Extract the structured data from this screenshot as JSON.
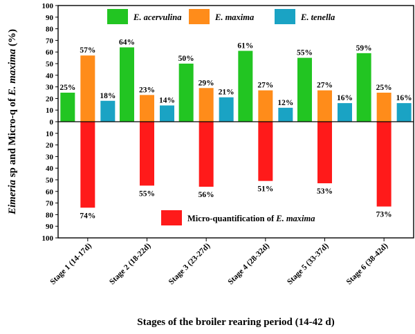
{
  "chart_data": {
    "type": "bar",
    "categories": [
      "Stage 1 (14-17d)",
      "Stage 2 (18-22d)",
      "Stage 3 (23-27d)",
      "Stage 4 (28-32d)",
      "Stage 5 (33-37d)",
      "Stage 6 (38-42d)"
    ],
    "series": [
      {
        "name": "E. acervulina",
        "color": "#22c522",
        "values": [
          25,
          64,
          50,
          61,
          55,
          59
        ],
        "labels": [
          "25%",
          "64%",
          "50%",
          "61%",
          "55%",
          "59%"
        ]
      },
      {
        "name": "E. maxima",
        "color": "#ff8c1a",
        "values": [
          57,
          23,
          29,
          27,
          27,
          25
        ],
        "labels": [
          "57%",
          "23%",
          "29%",
          "27%",
          "27%",
          "25%"
        ]
      },
      {
        "name": "E. tenella",
        "color": "#1aa3c4",
        "values": [
          18,
          14,
          21,
          12,
          16,
          16
        ],
        "labels": [
          "18%",
          "14%",
          "21%",
          "12%",
          "16%",
          "16%"
        ]
      }
    ],
    "negative_series": {
      "name_prefix": "Micro-quantification of ",
      "name_italic": "E. maxima",
      "color": "#ff1a1a",
      "values": [
        74,
        55,
        56,
        51,
        53,
        73
      ],
      "labels": [
        "74%",
        "55%",
        "56%",
        "51%",
        "53%",
        "73%"
      ]
    },
    "ylabel": {
      "italic_a": "Eimeria",
      "plain_a": " sp and Micro-q of ",
      "italic_b": "E. maxima",
      "plain_b": " (%)"
    },
    "xlabel": "Stages of the broiler rearing period  (14-42 d)",
    "y_ticks": [
      "100",
      "90",
      "80",
      "70",
      "60",
      "50",
      "40",
      "30",
      "20",
      "10",
      "0",
      "10",
      "20",
      "30",
      "40",
      "50",
      "60",
      "70",
      "80",
      "90",
      "100"
    ],
    "ylim": [
      -100,
      100
    ],
    "grid": false,
    "legend_placement": "top and lower-center"
  }
}
